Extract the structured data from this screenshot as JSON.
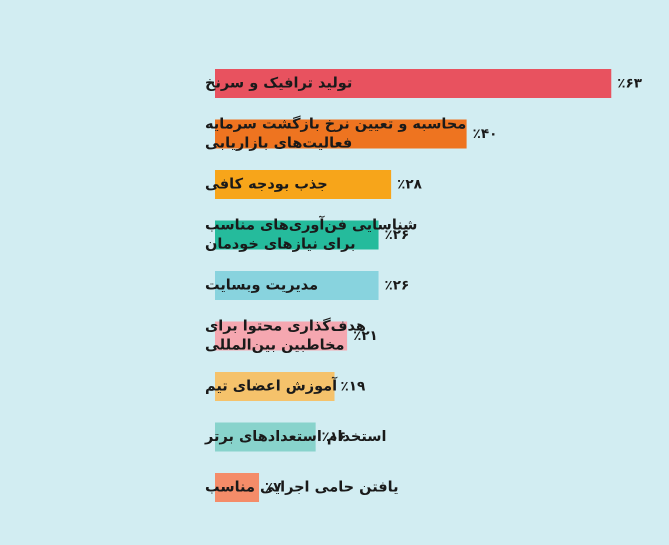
{
  "chart_data": {
    "type": "bar",
    "orientation": "horizontal",
    "title": "",
    "xlabel": "",
    "ylabel": "",
    "xlim": [
      0,
      63
    ],
    "grid": false,
    "legend": "none",
    "categories": [
      [
        "تولید ترافیک و سرنخ"
      ],
      [
        "محاسبه و تعیین نرخ بازگشت سرمایه",
        "فعالیت‌های بازاریابی"
      ],
      [
        "جذب بودجه کافی"
      ],
      [
        "شناسایی فن‌آوری‌های مناسب",
        "برای نیازهای خودمان"
      ],
      [
        "مدیریت وبسایت"
      ],
      [
        "هدف‌گذاری محتوا برای",
        "مخاطبین بین‌المللی"
      ],
      [
        "آموزش اعضای تیم"
      ],
      [
        "استخدام استعدادهای برتر"
      ],
      [
        "یافتن حامی اجرایی مناسب"
      ]
    ],
    "values": [
      63,
      40,
      28,
      26,
      26,
      21,
      19,
      16,
      7
    ],
    "value_labels": [
      "٪۶۳",
      "٪۴۰",
      "٪۲۸",
      "٪۲۶",
      "٪۲۶",
      "٪۲۱",
      "٪۱۹",
      "٪۱۶",
      "٪۷"
    ],
    "colors": [
      "#e8525f",
      "#ee7420",
      "#f7a51a",
      "#25bb9c",
      "#88d3de",
      "#f5a7b0",
      "#f5c26b",
      "#88d3cc",
      "#f48c69"
    ]
  }
}
